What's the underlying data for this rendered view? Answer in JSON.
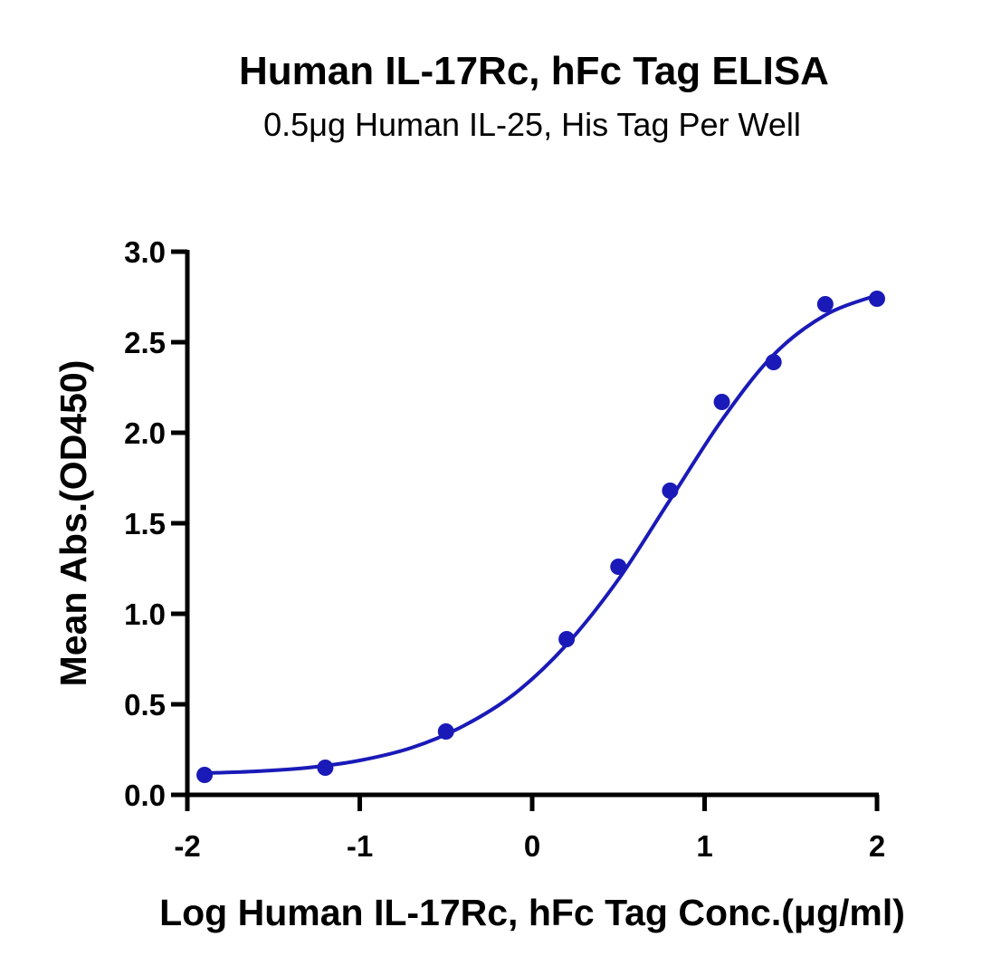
{
  "chart_data": {
    "type": "scatter",
    "title": "Human IL-17Rc, hFc Tag ELISA",
    "subtitle": "0.5μg Human IL-25, His Tag Per Well",
    "xlabel": "Log Human IL-17Rc, hFc Tag Conc.(μg/ml)",
    "ylabel": "Mean Abs.(OD450)",
    "xlim": [
      -2,
      2
    ],
    "ylim": [
      0,
      3.0
    ],
    "xticks": [
      {
        "value": -2,
        "label": "-2"
      },
      {
        "value": -1,
        "label": "-1"
      },
      {
        "value": 0,
        "label": "0"
      },
      {
        "value": 1,
        "label": "1"
      },
      {
        "value": 2,
        "label": "2"
      }
    ],
    "yticks": [
      {
        "value": 0.0,
        "label": "0.0"
      },
      {
        "value": 0.5,
        "label": "0.5"
      },
      {
        "value": 1.0,
        "label": "1.0"
      },
      {
        "value": 1.5,
        "label": "1.5"
      },
      {
        "value": 2.0,
        "label": "2.0"
      },
      {
        "value": 2.5,
        "label": "2.5"
      },
      {
        "value": 3.0,
        "label": "3.0"
      }
    ],
    "series": [
      {
        "color": "#1a1ab8",
        "points": [
          {
            "x": -1.9,
            "y": 0.11
          },
          {
            "x": -1.2,
            "y": 0.15
          },
          {
            "x": -0.5,
            "y": 0.35
          },
          {
            "x": 0.2,
            "y": 0.86
          },
          {
            "x": 0.5,
            "y": 1.26
          },
          {
            "x": 0.8,
            "y": 1.68
          },
          {
            "x": 1.1,
            "y": 2.17
          },
          {
            "x": 1.4,
            "y": 2.39
          },
          {
            "x": 1.7,
            "y": 2.71
          },
          {
            "x": 2.0,
            "y": 2.74
          }
        ],
        "fit_curve": [
          {
            "x": -1.9,
            "y": 0.12
          },
          {
            "x": -1.6,
            "y": 0.13
          },
          {
            "x": -1.3,
            "y": 0.15
          },
          {
            "x": -1.0,
            "y": 0.19
          },
          {
            "x": -0.7,
            "y": 0.26
          },
          {
            "x": -0.4,
            "y": 0.38
          },
          {
            "x": -0.1,
            "y": 0.56
          },
          {
            "x": 0.2,
            "y": 0.83
          },
          {
            "x": 0.5,
            "y": 1.19
          },
          {
            "x": 0.8,
            "y": 1.63
          },
          {
            "x": 1.1,
            "y": 2.07
          },
          {
            "x": 1.4,
            "y": 2.43
          },
          {
            "x": 1.7,
            "y": 2.65
          },
          {
            "x": 2.0,
            "y": 2.76
          }
        ]
      }
    ],
    "grid": false,
    "legend": "none"
  }
}
